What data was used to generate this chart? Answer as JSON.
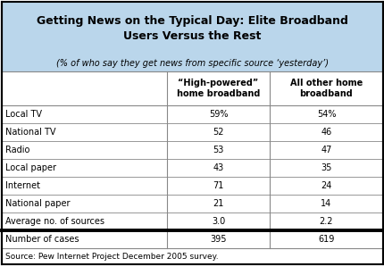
{
  "title": "Getting News on the Typical Day: Elite Broadband\nUsers Versus the Rest",
  "subtitle": "(% of who say they get news from specific source ‘yesterday’)",
  "col_headers": [
    "“High-powered”\nhome broadband",
    "All other home\nbroadband"
  ],
  "rows": [
    [
      "Local TV",
      "59%",
      "54%"
    ],
    [
      "National TV",
      "52",
      "46"
    ],
    [
      "Radio",
      "53",
      "47"
    ],
    [
      "Local paper",
      "43",
      "35"
    ],
    [
      "Internet",
      "71",
      "24"
    ],
    [
      "National paper",
      "21",
      "14"
    ],
    [
      "Average no. of sources",
      "3.0",
      "2.2"
    ]
  ],
  "bottom_row": [
    "Number of cases",
    "395",
    "619"
  ],
  "source": "Source: Pew Internet Project December 2005 survey.",
  "title_bg": "#bad6eb",
  "thin_line_color": "#888888"
}
